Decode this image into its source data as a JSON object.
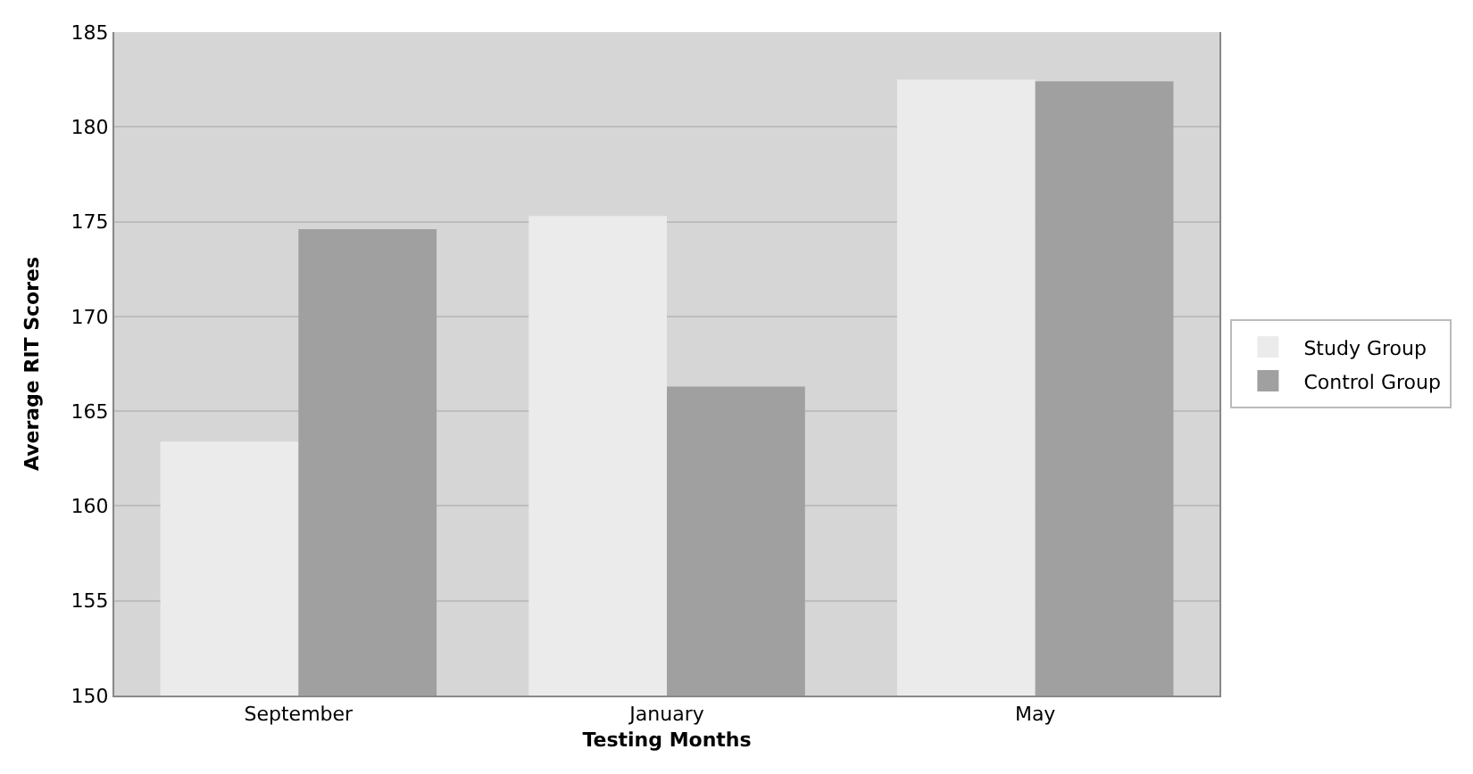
{
  "chart_data": {
    "type": "bar",
    "xlabel": "Testing Months",
    "ylabel": "Average RIT Scores",
    "categories": [
      "September",
      "January",
      "May"
    ],
    "series": [
      {
        "name": "Study Group",
        "color": "#ebebeb",
        "values": [
          163.4,
          175.3,
          182.5
        ]
      },
      {
        "name": "Control Group",
        "color": "#a0a0a0",
        "values": [
          174.6,
          166.3,
          182.4
        ]
      }
    ],
    "ylim": [
      150,
      185
    ],
    "yticks": [
      150,
      155,
      160,
      165,
      170,
      175,
      180,
      185
    ],
    "grid": "y",
    "legend": "right"
  }
}
